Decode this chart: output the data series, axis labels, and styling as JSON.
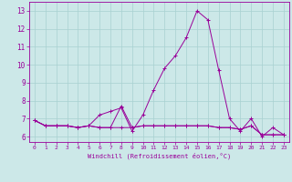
{
  "title": "",
  "xlabel": "Windchill (Refroidissement éolien,°C)",
  "ylabel": "",
  "background_color": "#cce8e8",
  "line_color": "#990099",
  "xlim": [
    -0.5,
    23.5
  ],
  "ylim": [
    5.7,
    13.5
  ],
  "yticks": [
    6,
    7,
    8,
    9,
    10,
    11,
    12,
    13
  ],
  "xticks": [
    0,
    1,
    2,
    3,
    4,
    5,
    6,
    7,
    8,
    9,
    10,
    11,
    12,
    13,
    14,
    15,
    16,
    17,
    18,
    19,
    20,
    21,
    22,
    23
  ],
  "series": [
    [
      6.9,
      6.6,
      6.6,
      6.6,
      6.5,
      6.6,
      7.2,
      7.4,
      7.6,
      6.3,
      7.2,
      8.6,
      9.8,
      10.5,
      11.5,
      13.0,
      12.5,
      9.7,
      7.0,
      6.3,
      7.0,
      6.0,
      6.5,
      6.1
    ],
    [
      6.9,
      6.6,
      6.6,
      6.6,
      6.5,
      6.6,
      6.5,
      6.5,
      7.7,
      6.5,
      6.6,
      6.6,
      6.6,
      6.6,
      6.6,
      6.6,
      6.6,
      6.5,
      6.5,
      6.4,
      6.6,
      6.1,
      6.1,
      6.1
    ],
    [
      6.9,
      6.6,
      6.6,
      6.6,
      6.5,
      6.6,
      6.5,
      6.5,
      6.5,
      6.5,
      6.6,
      6.6,
      6.6,
      6.6,
      6.6,
      6.6,
      6.6,
      6.5,
      6.5,
      6.4,
      6.6,
      6.1,
      6.1,
      6.1
    ]
  ]
}
